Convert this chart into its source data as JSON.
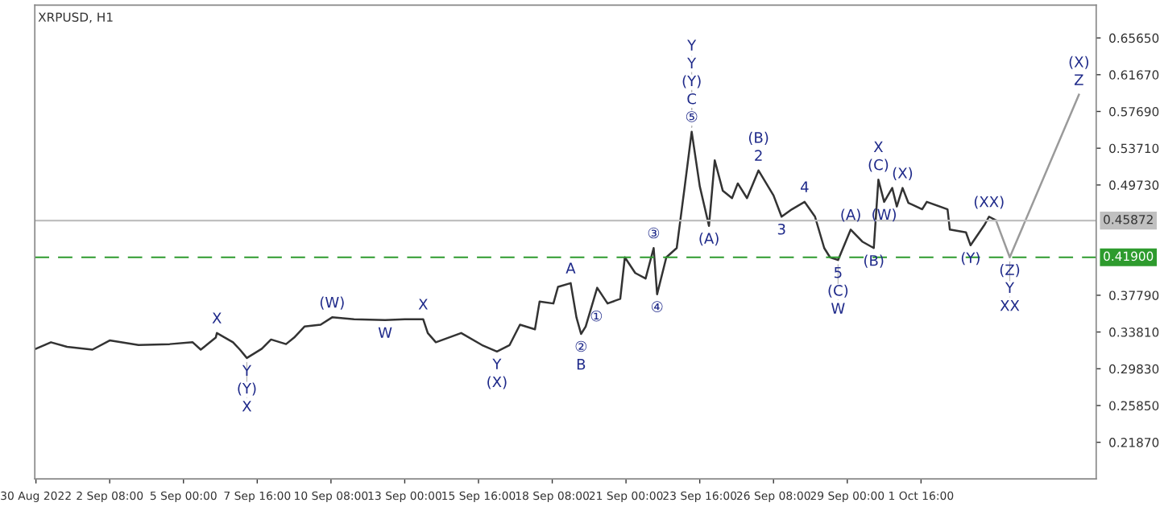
{
  "chart_data": {
    "type": "line",
    "title": "XRPUSD, H1",
    "xlim": [
      "2022-08-30T15:00",
      "2022-10-08T00:00"
    ],
    "xticks": [
      {
        "value": "2022-08-30T16:00",
        "label": "30 Aug 2022"
      },
      {
        "value": "2022-09-02T08:00",
        "label": "2 Sep 08:00"
      },
      {
        "value": "2022-09-05T00:00",
        "label": "5 Sep 00:00"
      },
      {
        "value": "2022-09-07T16:00",
        "label": "7 Sep 16:00"
      },
      {
        "value": "2022-09-10T08:00",
        "label": "10 Sep 08:00"
      },
      {
        "value": "2022-09-13T00:00",
        "label": "13 Sep 00:00"
      },
      {
        "value": "2022-09-15T16:00",
        "label": "15 Sep 16:00"
      },
      {
        "value": "2022-09-18T08:00",
        "label": "18 Sep 08:00"
      },
      {
        "value": "2022-09-21T00:00",
        "label": "21 Sep 00:00"
      },
      {
        "value": "2022-09-23T16:00",
        "label": "23 Sep 16:00"
      },
      {
        "value": "2022-09-26T08:00",
        "label": "26 Sep 08:00"
      },
      {
        "value": "2022-09-29T00:00",
        "label": "29 Sep 00:00"
      },
      {
        "value": "2022-10-01T16:00",
        "label": "1 Oct 16:00"
      }
    ],
    "ylim": [
      0.179,
      0.692
    ],
    "yticks": [
      {
        "value": 0.6565,
        "label": "0.65650"
      },
      {
        "value": 0.6167,
        "label": "0.61670"
      },
      {
        "value": 0.5769,
        "label": "0.57690"
      },
      {
        "value": 0.5371,
        "label": "0.53710"
      },
      {
        "value": 0.4973,
        "label": "0.49730"
      },
      {
        "value": 0.3779,
        "label": "0.37790"
      },
      {
        "value": 0.3381,
        "label": "0.33810"
      },
      {
        "value": 0.2983,
        "label": "0.29830"
      },
      {
        "value": 0.2585,
        "label": "0.25850"
      },
      {
        "value": 0.2187,
        "label": "0.21870"
      }
    ],
    "grid": false,
    "legend": false,
    "ref_lines": [
      {
        "axis": "y",
        "value": 0.45872,
        "label": "0.45872",
        "color": "#c0c0c0",
        "line_style": "solid"
      },
      {
        "axis": "y",
        "value": 0.419,
        "label": "0.41900",
        "color": "#2e9b2e",
        "line_style": "dashed"
      }
    ],
    "series": [
      {
        "color": "#333333",
        "x": [
          "2022-08-30T16:00",
          "2022-08-31T05:00",
          "2022-08-31T19:00",
          "2022-09-01T17:00",
          "2022-09-02T08:00",
          "2022-09-03T09:00",
          "2022-09-04T12:00",
          "2022-09-05T08:00",
          "2022-09-05T15:00",
          "2022-09-06T04:00",
          "2022-09-06T05:00",
          "2022-09-06T19:00",
          "2022-09-07T01:00",
          "2022-09-07T07:00",
          "2022-09-07T20:00",
          "2022-09-08T04:00",
          "2022-09-08T17:00",
          "2022-09-09T00:00",
          "2022-09-09T09:00",
          "2022-09-09T23:00",
          "2022-09-10T09:00",
          "2022-09-11T04:00",
          "2022-09-12T07:00",
          "2022-09-13T00:00",
          "2022-09-13T16:00",
          "2022-09-13T20:00",
          "2022-09-14T03:00",
          "2022-09-15T01:00",
          "2022-09-15T19:00",
          "2022-09-16T08:00",
          "2022-09-16T19:00",
          "2022-09-17T04:00",
          "2022-09-17T17:00",
          "2022-09-17T21:00",
          "2022-09-18T09:00",
          "2022-09-18T13:00",
          "2022-09-19T00:00",
          "2022-09-19T05:00",
          "2022-09-19T09:00",
          "2022-09-19T13:00",
          "2022-09-19T23:00",
          "2022-09-20T08:00",
          "2022-09-20T19:00",
          "2022-09-20T23:00",
          "2022-09-21T08:00",
          "2022-09-21T17:00",
          "2022-09-22T00:00",
          "2022-09-22T03:00",
          "2022-09-22T11:00",
          "2022-09-22T20:00",
          "2022-09-23T03:00",
          "2022-09-23T09:00",
          "2022-09-23T16:00",
          "2022-09-24T00:00",
          "2022-09-24T05:00",
          "2022-09-24T12:00",
          "2022-09-24T20:00",
          "2022-09-25T01:00",
          "2022-09-25T09:00",
          "2022-09-25T19:00",
          "2022-09-26T08:00",
          "2022-09-26T15:00",
          "2022-09-27T00:00",
          "2022-09-27T11:00",
          "2022-09-27T20:00",
          "2022-09-28T00:00",
          "2022-09-28T04:00",
          "2022-09-28T09:00",
          "2022-09-28T16:00",
          "2022-09-29T03:00",
          "2022-09-29T13:00",
          "2022-09-29T23:00",
          "2022-09-30T03:00",
          "2022-09-30T08:00",
          "2022-09-30T15:00",
          "2022-09-30T19:00",
          "2022-10-01T00:00",
          "2022-10-01T05:00",
          "2022-10-01T17:00",
          "2022-10-01T21:00",
          "2022-10-02T15:00",
          "2022-10-02T17:00",
          "2022-10-03T07:00",
          "2022-10-03T11:00",
          "2022-10-03T23:00",
          "2022-10-04T03:00",
          "2022-10-04T09:00"
        ],
        "values": [
          0.32,
          0.327,
          0.322,
          0.319,
          0.329,
          0.324,
          0.325,
          0.327,
          0.319,
          0.332,
          0.337,
          0.327,
          0.319,
          0.31,
          0.32,
          0.33,
          0.325,
          0.332,
          0.344,
          0.346,
          0.354,
          0.352,
          0.351,
          0.352,
          0.352,
          0.337,
          0.327,
          0.337,
          0.324,
          0.317,
          0.324,
          0.346,
          0.341,
          0.371,
          0.369,
          0.387,
          0.391,
          0.354,
          0.336,
          0.344,
          0.386,
          0.369,
          0.374,
          0.419,
          0.402,
          0.396,
          0.429,
          0.379,
          0.419,
          0.429,
          0.496,
          0.555,
          0.496,
          0.453,
          0.524,
          0.491,
          0.483,
          0.499,
          0.483,
          0.513,
          0.486,
          0.463,
          0.471,
          0.479,
          0.463,
          0.446,
          0.429,
          0.419,
          0.416,
          0.449,
          0.436,
          0.429,
          0.503,
          0.479,
          0.494,
          0.474,
          0.494,
          0.478,
          0.471,
          0.479,
          0.471,
          0.449,
          0.446,
          0.432,
          0.454,
          0.463,
          0.459
        ]
      },
      {
        "color": "#9a9a9a",
        "x": [
          "2022-10-04T09:00",
          "2022-10-04T21:00",
          "2022-10-07T09:00"
        ],
        "values": [
          0.459,
          0.419,
          0.595
        ]
      }
    ],
    "annotations": [
      {
        "text": "X",
        "x": "2022-09-06T05:00",
        "y": 0.337
      },
      {
        "text": "Y",
        "x": "2022-09-07T07:00",
        "y": 0.31
      },
      {
        "text": "(Y)",
        "x": "2022-09-07T07:00",
        "y": 0.31
      },
      {
        "text": "X",
        "x": "2022-09-07T07:00",
        "y": 0.31
      },
      {
        "text": "(W)",
        "x": "2022-09-10T09:00",
        "y": 0.354
      },
      {
        "text": "W",
        "x": "2022-09-12T07:00",
        "y": 0.351
      },
      {
        "text": "X",
        "x": "2022-09-13T16:00",
        "y": 0.352
      },
      {
        "text": "Y",
        "x": "2022-09-16T08:00",
        "y": 0.317
      },
      {
        "text": "(X)",
        "x": "2022-09-16T08:00",
        "y": 0.317
      },
      {
        "text": "A",
        "x": "2022-09-19T00:00",
        "y": 0.391
      },
      {
        "text": "①",
        "x": "2022-09-19T05:00",
        "y": 0.354
      },
      {
        "text": "②",
        "x": "2022-09-19T09:00",
        "y": 0.336
      },
      {
        "text": "B",
        "x": "2022-09-19T09:00",
        "y": 0.336
      },
      {
        "text": "③",
        "x": "2022-09-22T00:00",
        "y": 0.429
      },
      {
        "text": "④",
        "x": "2022-09-22T03:00",
        "y": 0.379
      },
      {
        "text": "Y",
        "x": "2022-09-23T09:00",
        "y": 0.555
      },
      {
        "text": "Y",
        "x": "2022-09-23T09:00",
        "y": 0.555
      },
      {
        "text": "(Y)",
        "x": "2022-09-23T09:00",
        "y": 0.555
      },
      {
        "text": "C",
        "x": "2022-09-23T09:00",
        "y": 0.555
      },
      {
        "text": "⑤",
        "x": "2022-09-23T09:00",
        "y": 0.555
      },
      {
        "text": "(A)",
        "x": "2022-09-24T00:00",
        "y": 0.453
      },
      {
        "text": "(B)",
        "x": "2022-09-25T19:00",
        "y": 0.513
      },
      {
        "text": "2",
        "x": "2022-09-25T19:00",
        "y": 0.513
      },
      {
        "text": "3",
        "x": "2022-09-26T15:00",
        "y": 0.463
      },
      {
        "text": "4",
        "x": "2022-09-27T11:00",
        "y": 0.479
      },
      {
        "text": "5",
        "x": "2022-09-28T16:00",
        "y": 0.416
      },
      {
        "text": "(C)",
        "x": "2022-09-28T16:00",
        "y": 0.416
      },
      {
        "text": "W",
        "x": "2022-09-28T16:00",
        "y": 0.416
      },
      {
        "text": "(A)",
        "x": "2022-09-29T03:00",
        "y": 0.449
      },
      {
        "text": "(B)",
        "x": "2022-09-29T23:00",
        "y": 0.429
      },
      {
        "text": "X",
        "x": "2022-09-30T03:00",
        "y": 0.503
      },
      {
        "text": "(C)",
        "x": "2022-09-30T03:00",
        "y": 0.503
      },
      {
        "text": "(W)",
        "x": "2022-09-30T08:00",
        "y": 0.479
      },
      {
        "text": "(X)",
        "x": "2022-10-01T00:00",
        "y": 0.494
      },
      {
        "text": "(Y)",
        "x": "2022-10-03T11:00",
        "y": 0.432
      },
      {
        "text": "(XX)",
        "x": "2022-10-04T03:00",
        "y": 0.463
      },
      {
        "text": "(Z)",
        "x": "2022-10-04T21:00",
        "y": 0.419
      },
      {
        "text": "Y",
        "x": "2022-10-04T21:00",
        "y": 0.419
      },
      {
        "text": "XX",
        "x": "2022-10-04T21:00",
        "y": 0.419
      },
      {
        "text": "(X)",
        "x": "2022-10-07T09:00",
        "y": 0.595
      },
      {
        "text": "Z",
        "x": "2022-10-07T09:00",
        "y": 0.595
      }
    ]
  }
}
